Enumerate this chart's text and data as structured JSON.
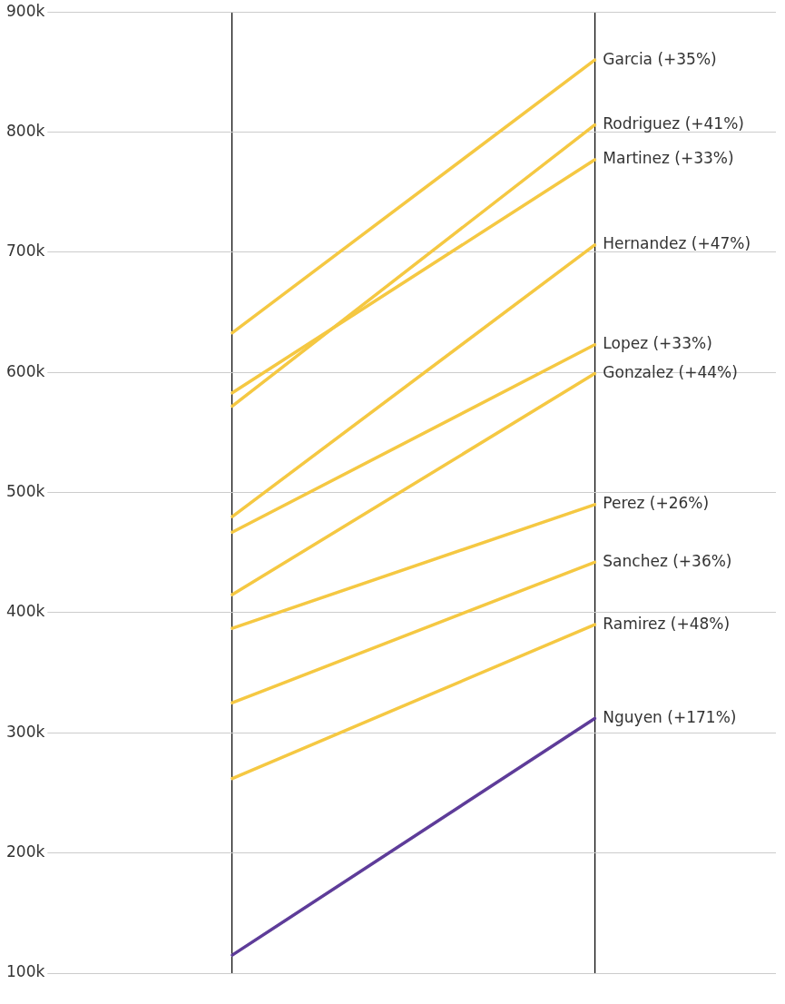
{
  "chart_data": {
    "type": "line",
    "categories": [
      null,
      null
    ],
    "ylim": [
      100000,
      900000
    ],
    "yticks": [
      {
        "value": 100000,
        "label": "100k"
      },
      {
        "value": 200000,
        "label": "200k"
      },
      {
        "value": 300000,
        "label": "300k"
      },
      {
        "value": 400000,
        "label": "400k"
      },
      {
        "value": 500000,
        "label": "500k"
      },
      {
        "value": 600000,
        "label": "600k"
      },
      {
        "value": 700000,
        "label": "700k"
      },
      {
        "value": 800000,
        "label": "800k"
      },
      {
        "value": 900000,
        "label": "900k"
      }
    ],
    "grid": true,
    "legend": false,
    "marker": "none",
    "line_style": "solid",
    "series": [
      {
        "name": "Garcia (+35%)",
        "color": "#f5c842",
        "values": [
          633000,
          860000
        ]
      },
      {
        "name": "Rodriguez (+41%)",
        "color": "#f5c842",
        "values": [
          572000,
          806000
        ]
      },
      {
        "name": "Martinez (+33%)",
        "color": "#f5c842",
        "values": [
          583000,
          777000
        ]
      },
      {
        "name": "Hernandez (+47%)",
        "color": "#f5c842",
        "values": [
          480000,
          706000
        ]
      },
      {
        "name": "Lopez (+33%)",
        "color": "#f5c842",
        "values": [
          467000,
          623000
        ]
      },
      {
        "name": "Gonzalez (+44%)",
        "color": "#f5c842",
        "values": [
          415000,
          599000
        ]
      },
      {
        "name": "Perez (+26%)",
        "color": "#f5c842",
        "values": [
          387000,
          490000
        ]
      },
      {
        "name": "Sanchez (+36%)",
        "color": "#f5c842",
        "values": [
          325000,
          442000
        ]
      },
      {
        "name": "Ramirez (+48%)",
        "color": "#f5c842",
        "values": [
          262000,
          390000
        ]
      },
      {
        "name": "Nguyen (+171%)",
        "color": "#5e3c99",
        "values": [
          115000,
          312000
        ]
      }
    ]
  }
}
